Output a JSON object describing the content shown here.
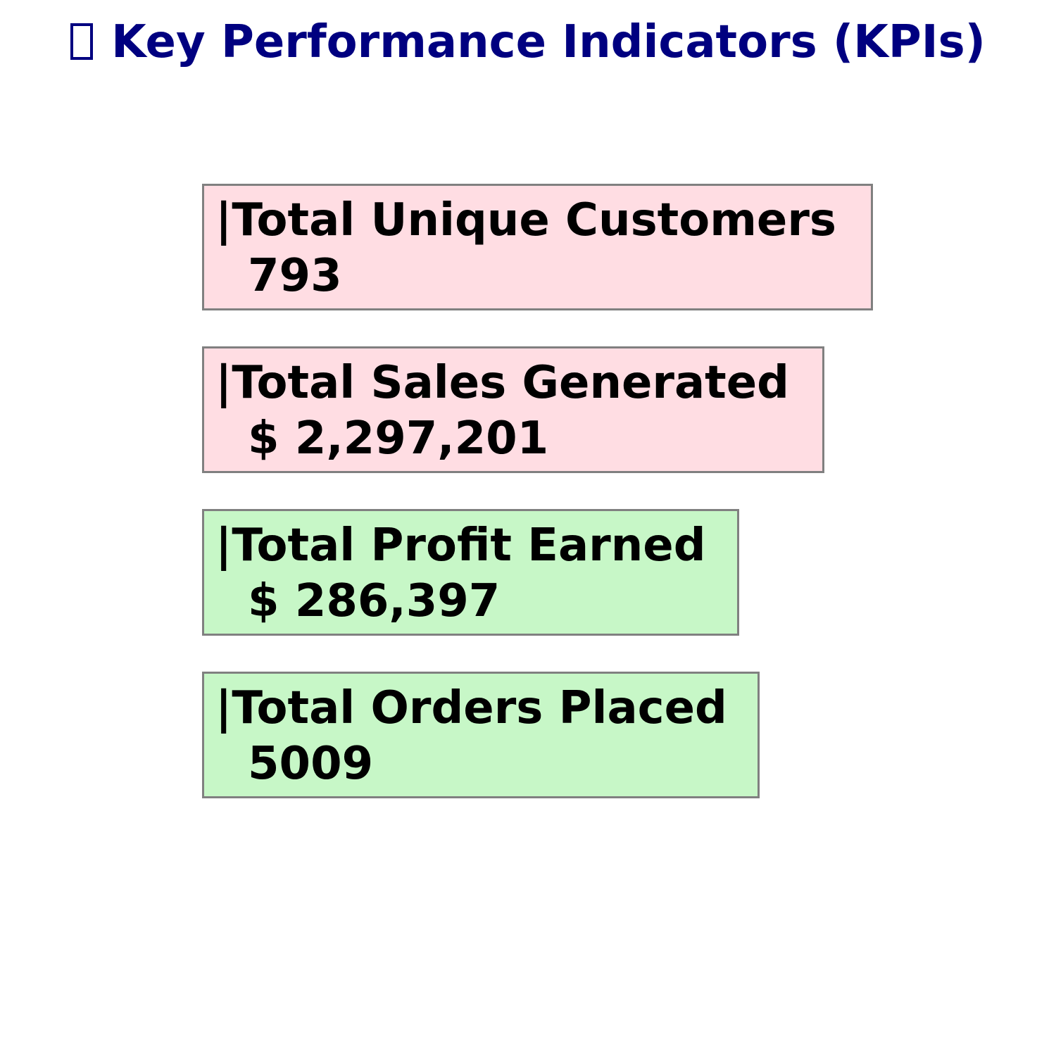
{
  "title": {
    "icon": "missing-glyph-icon",
    "text": "Key Performance Indicators (KPIs)",
    "color": "#000080"
  },
  "kpis": [
    {
      "label": "|Total Unique Customers",
      "value": "793",
      "bg_color": "#ffdde3"
    },
    {
      "label": "|Total Sales Generated",
      "value": "$ 2,297,201",
      "bg_color": "#ffdde3"
    },
    {
      "label": "|Total Profit Earned",
      "value": "$ 286,397",
      "bg_color": "#c7f7c7"
    },
    {
      "label": "|Total Orders Placed",
      "value": "5009",
      "bg_color": "#c7f7c7"
    }
  ]
}
